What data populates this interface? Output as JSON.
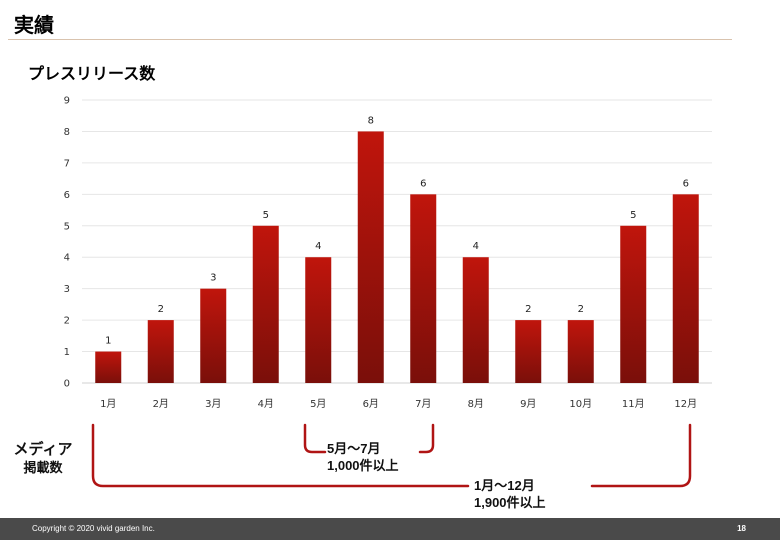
{
  "page": {
    "title": "実績",
    "page_number": "18",
    "copyright": "Copyright © 2020 vivid garden Inc."
  },
  "colors": {
    "bar_top": "#c0150c",
    "bar_bottom": "#7a0f0a",
    "bracket": "#b01414"
  },
  "chart_data": {
    "type": "bar",
    "title": "プレスリリース数",
    "categories": [
      "1月",
      "2月",
      "3月",
      "4月",
      "5月",
      "6月",
      "7月",
      "8月",
      "9月",
      "10月",
      "11月",
      "12月"
    ],
    "values": [
      1,
      2,
      3,
      5,
      4,
      8,
      6,
      4,
      2,
      2,
      5,
      6
    ],
    "ylim": [
      0,
      9
    ],
    "yticks": [
      0,
      1,
      2,
      3,
      4,
      5,
      6,
      7,
      8,
      9
    ],
    "grid": true,
    "data_labels": true
  },
  "annotations": {
    "media_label_line1": "メディア",
    "media_label_line2": "掲載数",
    "range1_line1": "5月〜7月",
    "range1_line2": "1,000件以上",
    "range2_line1": "1月〜12月",
    "range2_line2": "1,900件以上"
  }
}
